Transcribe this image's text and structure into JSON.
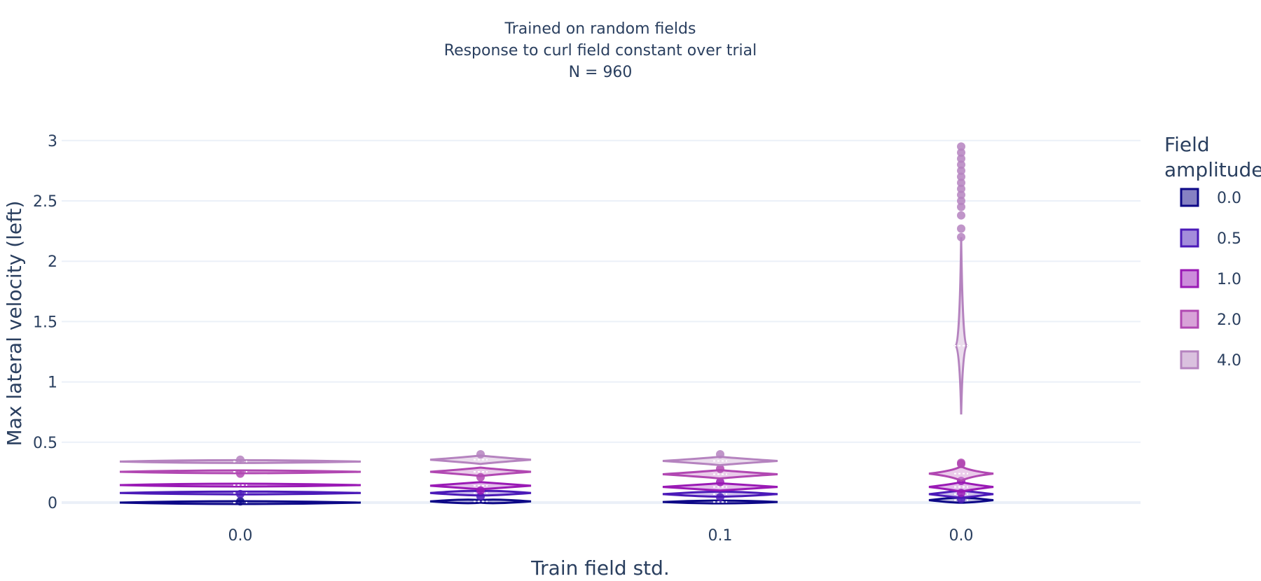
{
  "chart_data": {
    "type": "violin",
    "title_lines": [
      "Trained on random fields",
      "Response to curl field constant over trial",
      "N = 960"
    ],
    "xlabel": "Train field std.",
    "ylabel": "Max lateral velocity (left)",
    "ylim": [
      -0.05,
      3.15
    ],
    "yticks": [
      0,
      0.5,
      1,
      1.5,
      2,
      2.5,
      3
    ],
    "ytick_labels": [
      "0",
      "0.5",
      "1",
      "1.5",
      "2",
      "2.5",
      "3"
    ],
    "xtick_labels": [
      "0.0",
      "0.1",
      "0.0"
    ],
    "grid": true,
    "legend_position": "right",
    "legend_title": [
      "Field",
      "amplitude"
    ],
    "series": [
      {
        "name": "0.0",
        "color": "#0d0887",
        "fill": "#8681c3"
      },
      {
        "name": "0.5",
        "color": "#4b1ab8",
        "fill": "#a48ddb"
      },
      {
        "name": "1.0",
        "color": "#9a1ab5",
        "fill": "#cc8ddb"
      },
      {
        "name": "2.0",
        "color": "#b148b2",
        "fill": "#d8a3d8"
      },
      {
        "name": "4.0",
        "color": "#b583bf",
        "fill": "#dac1df"
      }
    ],
    "groups": [
      {
        "label": "0.0",
        "violins": [
          {
            "series": "0.0",
            "median": 0.0,
            "spread": 0.0,
            "range": [
              0.0,
              0.005
            ],
            "outliers": [
              0.01
            ]
          },
          {
            "series": "0.5",
            "median": 0.08,
            "spread": 0.0,
            "range": [
              0.078,
              0.082
            ],
            "outliers": [
              0.07
            ]
          },
          {
            "series": "1.0",
            "median": 0.145,
            "spread": 0.0,
            "range": [
              0.142,
              0.148
            ],
            "outliers": []
          },
          {
            "series": "2.0",
            "median": 0.255,
            "spread": 0.0,
            "range": [
              0.252,
              0.258
            ],
            "outliers": [
              0.24
            ]
          },
          {
            "series": "4.0",
            "median": 0.34,
            "spread": 0.0,
            "range": [
              0.335,
              0.345
            ],
            "outliers": [
              0.355
            ]
          }
        ]
      },
      {
        "label": "",
        "violins": [
          {
            "series": "0.0",
            "median": 0.01,
            "spread": 0.0,
            "range": [
              0.0,
              0.02
            ],
            "outliers": []
          },
          {
            "series": "0.5",
            "median": 0.08,
            "spread": 0.01,
            "range": [
              0.06,
              0.095
            ],
            "outliers": [
              0.05
            ]
          },
          {
            "series": "1.0",
            "median": 0.14,
            "spread": 0.02,
            "range": [
              0.11,
              0.17
            ],
            "outliers": [
              0.1
            ]
          },
          {
            "series": "2.0",
            "median": 0.255,
            "spread": 0.02,
            "range": [
              0.22,
              0.29
            ],
            "outliers": [
              0.21
            ]
          },
          {
            "series": "4.0",
            "median": 0.355,
            "spread": 0.02,
            "range": [
              0.32,
              0.39
            ],
            "outliers": [
              0.4
            ]
          }
        ]
      },
      {
        "label": "0.1",
        "violins": [
          {
            "series": "0.0",
            "median": 0.005,
            "spread": 0.0,
            "range": [
              0.0,
              0.01
            ],
            "outliers": []
          },
          {
            "series": "0.5",
            "median": 0.07,
            "spread": 0.01,
            "range": [
              0.05,
              0.09
            ],
            "outliers": [
              0.045
            ]
          },
          {
            "series": "1.0",
            "median": 0.13,
            "spread": 0.02,
            "range": [
              0.1,
              0.16
            ],
            "outliers": [
              0.17
            ]
          },
          {
            "series": "2.0",
            "median": 0.235,
            "spread": 0.02,
            "range": [
              0.2,
              0.27
            ],
            "outliers": [
              0.28
            ]
          },
          {
            "series": "4.0",
            "median": 0.345,
            "spread": 0.02,
            "range": [
              0.31,
              0.38
            ],
            "outliers": [
              0.4
            ]
          }
        ]
      },
      {
        "label": "0.0",
        "violins": [
          {
            "series": "0.0",
            "median": 0.02,
            "spread": 0.01,
            "range": [
              0.0,
              0.04
            ],
            "outliers": []
          },
          {
            "series": "0.5",
            "median": 0.07,
            "spread": 0.015,
            "range": [
              0.04,
              0.1
            ],
            "outliers": [
              0.03
            ]
          },
          {
            "series": "1.0",
            "median": 0.13,
            "spread": 0.02,
            "range": [
              0.09,
              0.17
            ],
            "outliers": [
              0.08,
              0.18
            ]
          },
          {
            "series": "2.0",
            "median": 0.24,
            "spread": 0.03,
            "range": [
              0.18,
              0.3
            ],
            "outliers": [
              0.32,
              0.33
            ]
          },
          {
            "series": "4.0",
            "median": 1.3,
            "spread": 0.3,
            "range": [
              0.73,
              2.2
            ],
            "outliers": [
              2.2,
              2.27,
              2.38,
              2.45,
              2.5,
              2.55,
              2.6,
              2.65,
              2.7,
              2.75,
              2.8,
              2.85,
              2.9,
              2.95
            ]
          }
        ]
      }
    ]
  }
}
